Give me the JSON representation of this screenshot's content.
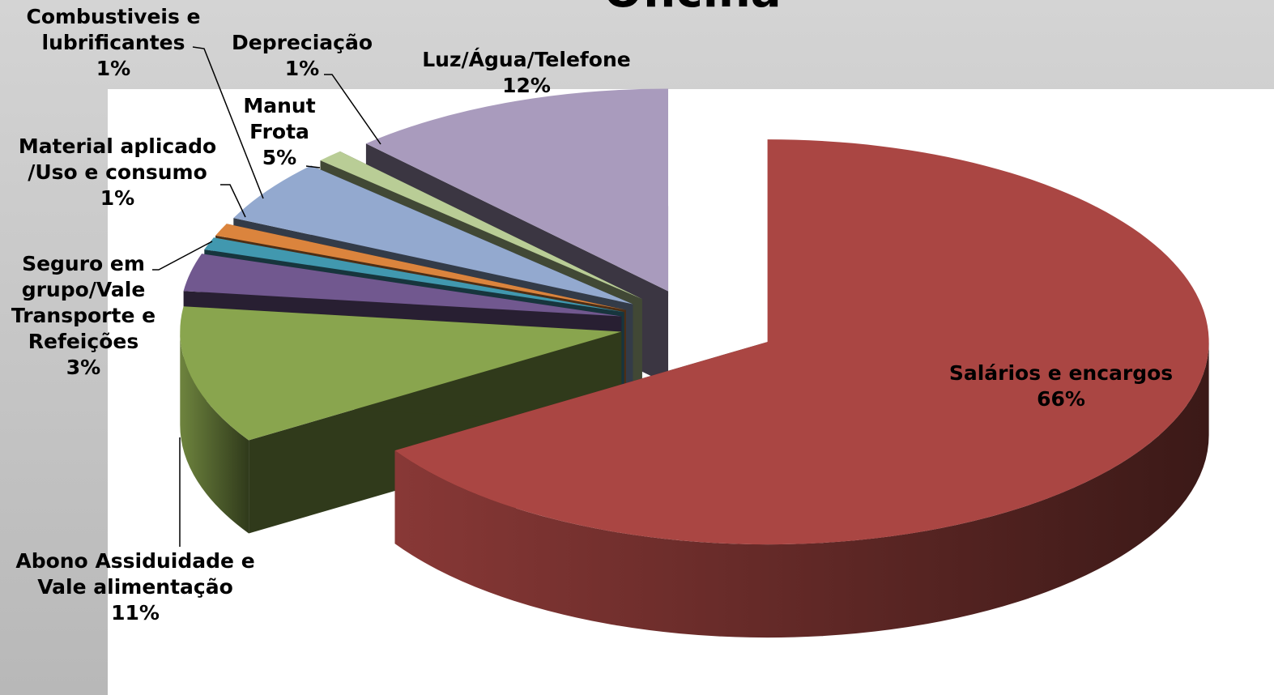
{
  "chart_data": {
    "type": "pie3d",
    "title": "Oficina",
    "categories": [
      "Salários e encargos",
      "Abono Assiduidade e Vale alimentação",
      "Seguro em grupo/Vale Transporte e Refeições",
      "Material aplicado /Uso e consumo",
      "Combustiveis e lubrificantes",
      "Manut Frota",
      "Depreciação",
      "Luz/Água/Telefone"
    ],
    "values": [
      66,
      11,
      3,
      1,
      1,
      5,
      1,
      12
    ],
    "value_labels": [
      "66%",
      "11%",
      "3%",
      "1%",
      "1%",
      "5%",
      "1%",
      "12%"
    ],
    "colors": [
      "#aa4643",
      "#89a54e",
      "#71588f",
      "#4198af",
      "#db843d",
      "#93a9cf",
      "#b9cd96",
      "#a99bbd"
    ]
  }
}
